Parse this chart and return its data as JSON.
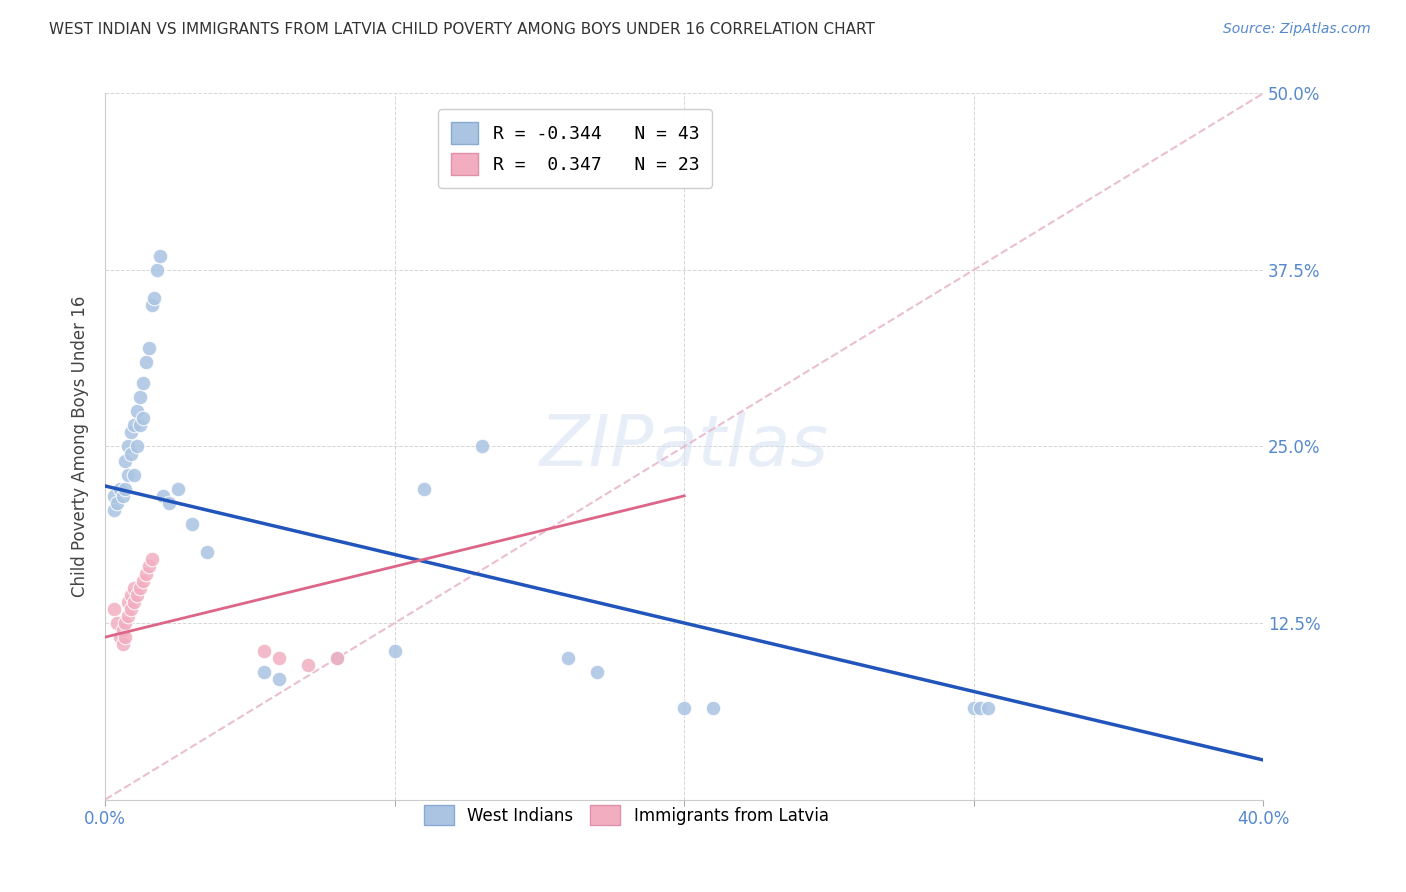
{
  "title": "WEST INDIAN VS IMMIGRANTS FROM LATVIA CHILD POVERTY AMONG BOYS UNDER 16 CORRELATION CHART",
  "source": "Source: ZipAtlas.com",
  "ylabel": "Child Poverty Among Boys Under 16",
  "xlim": [
    0.0,
    0.4
  ],
  "ylim": [
    0.0,
    0.5
  ],
  "west_indian_R": -0.344,
  "west_indian_N": 43,
  "latvia_R": 0.347,
  "latvia_N": 23,
  "blue_color": "#aac4e2",
  "pink_color": "#f2aec0",
  "blue_line_color": "#2255bb",
  "pink_line_color": "#dd6688",
  "diagonal_color": "#e8b8cc",
  "west_indian_x": [
    0.003,
    0.003,
    0.004,
    0.005,
    0.006,
    0.007,
    0.007,
    0.008,
    0.008,
    0.009,
    0.009,
    0.01,
    0.01,
    0.011,
    0.011,
    0.012,
    0.012,
    0.013,
    0.013,
    0.014,
    0.015,
    0.016,
    0.017,
    0.018,
    0.019,
    0.02,
    0.022,
    0.025,
    0.03,
    0.035,
    0.055,
    0.06,
    0.08,
    0.1,
    0.11,
    0.13,
    0.16,
    0.17,
    0.2,
    0.21,
    0.3,
    0.302,
    0.305
  ],
  "west_indian_y": [
    0.215,
    0.205,
    0.21,
    0.22,
    0.215,
    0.24,
    0.22,
    0.25,
    0.23,
    0.26,
    0.245,
    0.265,
    0.23,
    0.275,
    0.25,
    0.285,
    0.265,
    0.295,
    0.27,
    0.31,
    0.32,
    0.35,
    0.355,
    0.375,
    0.385,
    0.215,
    0.21,
    0.22,
    0.195,
    0.175,
    0.09,
    0.085,
    0.1,
    0.105,
    0.22,
    0.25,
    0.1,
    0.09,
    0.065,
    0.065,
    0.065,
    0.065,
    0.065
  ],
  "latvia_x": [
    0.003,
    0.004,
    0.005,
    0.006,
    0.006,
    0.007,
    0.007,
    0.008,
    0.008,
    0.009,
    0.009,
    0.01,
    0.01,
    0.011,
    0.012,
    0.013,
    0.014,
    0.015,
    0.016,
    0.055,
    0.06,
    0.07,
    0.08
  ],
  "latvia_y": [
    0.135,
    0.125,
    0.115,
    0.12,
    0.11,
    0.125,
    0.115,
    0.14,
    0.13,
    0.145,
    0.135,
    0.15,
    0.14,
    0.145,
    0.15,
    0.155,
    0.16,
    0.165,
    0.17,
    0.105,
    0.1,
    0.095,
    0.1
  ],
  "blue_line_x": [
    0.0,
    0.4
  ],
  "blue_line_y": [
    0.222,
    0.028
  ],
  "pink_line_x": [
    0.0,
    0.2
  ],
  "pink_line_y": [
    0.115,
    0.215
  ]
}
